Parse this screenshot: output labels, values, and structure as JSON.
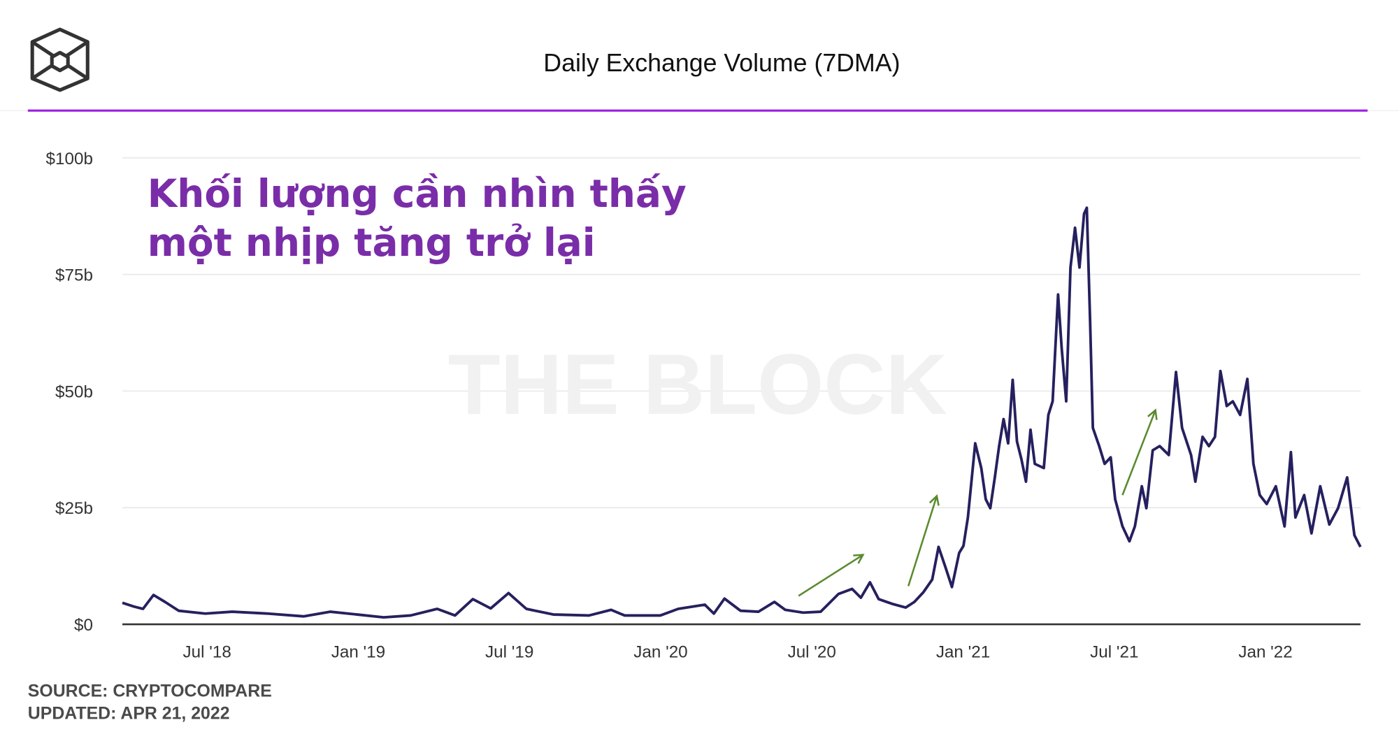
{
  "header": {
    "title": "Daily Exchange Volume (7DMA)",
    "logo": "The Block cube logo"
  },
  "colors": {
    "line": "#25205e",
    "accent": "#9b1fe0",
    "arrow": "#5a8a2e",
    "annotation": "#7a2da8",
    "grid": "#ebebeb"
  },
  "watermark": "THE BLOCK",
  "annotation_text": [
    "Khối lượng cần nhìn thấy",
    "một nhịp tăng trở lại"
  ],
  "footer": {
    "source": "SOURCE: CRYPTOCOMPARE",
    "updated": "UPDATED: APR 21, 2022"
  },
  "chart_data": {
    "type": "line",
    "title": "Daily Exchange Volume (7DMA)",
    "xlabel": "",
    "ylabel": "",
    "ylim": [
      0,
      100
    ],
    "xlim": [
      2018.22,
      2022.314
    ],
    "grid": true,
    "yticks": [
      {
        "v": 0,
        "label": "$0"
      },
      {
        "v": 25,
        "label": "$25b"
      },
      {
        "v": 50,
        "label": "$50b"
      },
      {
        "v": 75,
        "label": "$75b"
      },
      {
        "v": 100,
        "label": "$100b"
      }
    ],
    "xticks": [
      {
        "v": 2018.5,
        "label": "Jul '18"
      },
      {
        "v": 2019.0,
        "label": "Jan '19"
      },
      {
        "v": 2019.5,
        "label": "Jul '19"
      },
      {
        "v": 2020.0,
        "label": "Jan '20"
      },
      {
        "v": 2020.5,
        "label": "Jul '20"
      },
      {
        "v": 2021.0,
        "label": "Jan '21"
      },
      {
        "v": 2021.5,
        "label": "Jul '21"
      },
      {
        "v": 2022.0,
        "label": "Jan '22"
      }
    ],
    "series": [
      {
        "name": "Daily Exchange Volume (7DMA), $b",
        "x": [
          2018.22,
          2018.258,
          2018.288,
          2018.323,
          2018.361,
          2018.406,
          2018.494,
          2018.583,
          2018.701,
          2018.819,
          2018.907,
          2018.996,
          2019.084,
          2019.173,
          2019.261,
          2019.32,
          2019.379,
          2019.438,
          2019.497,
          2019.556,
          2019.645,
          2019.763,
          2019.836,
          2019.881,
          2019.999,
          2020.058,
          2020.146,
          2020.176,
          2020.211,
          2020.264,
          2020.323,
          2020.376,
          2020.412,
          2020.471,
          2020.529,
          2020.588,
          2020.633,
          2020.662,
          2020.692,
          2020.721,
          2020.765,
          2020.81,
          2020.839,
          2020.869,
          2020.898,
          2020.919,
          2020.942,
          2020.963,
          2020.987,
          2021.001,
          2021.016,
          2021.04,
          2021.06,
          2021.075,
          2021.09,
          2021.105,
          2021.119,
          2021.134,
          2021.149,
          2021.164,
          2021.178,
          2021.193,
          2021.208,
          2021.223,
          2021.237,
          2021.267,
          2021.282,
          2021.296,
          2021.314,
          2021.326,
          2021.341,
          2021.355,
          2021.37,
          2021.385,
          2021.4,
          2021.409,
          2021.42,
          2021.429,
          2021.45,
          2021.468,
          2021.488,
          2021.503,
          2021.527,
          2021.55,
          2021.568,
          2021.591,
          2021.606,
          2021.627,
          2021.65,
          2021.68,
          2021.704,
          2021.724,
          2021.754,
          2021.768,
          2021.792,
          2021.813,
          2021.833,
          2021.851,
          2021.872,
          2021.892,
          2021.916,
          2021.94,
          2021.96,
          2021.981,
          2022.004,
          2022.034,
          2022.063,
          2022.084,
          2022.099,
          2022.128,
          2022.152,
          2022.181,
          2022.211,
          2022.24,
          2022.27,
          2022.294,
          2022.314
        ],
        "values": [
          4.6,
          3.8,
          3.3,
          6.3,
          4.8,
          2.9,
          2.3,
          2.7,
          2.3,
          1.7,
          2.7,
          2.1,
          1.5,
          1.9,
          3.3,
          1.9,
          5.4,
          3.4,
          6.7,
          3.3,
          2.1,
          1.9,
          3.1,
          1.9,
          1.9,
          3.3,
          4.2,
          2.3,
          5.5,
          2.9,
          2.7,
          4.8,
          3.1,
          2.5,
          2.7,
          6.5,
          7.6,
          5.7,
          9.0,
          5.4,
          4.4,
          3.6,
          4.8,
          6.9,
          9.6,
          16.6,
          12.2,
          8.0,
          15.3,
          16.8,
          22.9,
          38.8,
          33.5,
          26.8,
          24.9,
          31.5,
          38.2,
          44.0,
          38.8,
          52.4,
          39.2,
          35.4,
          30.6,
          41.7,
          34.4,
          33.5,
          44.9,
          47.8,
          70.7,
          59.3,
          47.8,
          76.5,
          85.0,
          76.5,
          88.0,
          89.3,
          65.0,
          42.1,
          38.2,
          34.4,
          35.8,
          26.8,
          21.0,
          17.8,
          21.0,
          29.6,
          24.9,
          37.3,
          38.2,
          36.3,
          54.1,
          42.1,
          36.3,
          30.6,
          40.2,
          38.2,
          40.2,
          54.3,
          46.8,
          47.8,
          44.9,
          52.6,
          34.4,
          27.7,
          25.8,
          29.6,
          21.0,
          36.9,
          22.9,
          27.7,
          19.5,
          29.6,
          21.4,
          24.9,
          31.5,
          19.1,
          16.6
        ]
      }
    ],
    "annotations": [
      {
        "type": "arrow",
        "from": [
          2020.456,
          6.1
        ],
        "to": [
          2020.669,
          14.9
        ]
      },
      {
        "type": "arrow",
        "from": [
          2020.819,
          8.2
        ],
        "to": [
          2020.913,
          27.5
        ]
      },
      {
        "type": "arrow",
        "from": [
          2021.527,
          27.7
        ],
        "to": [
          2021.636,
          45.9
        ]
      }
    ]
  }
}
